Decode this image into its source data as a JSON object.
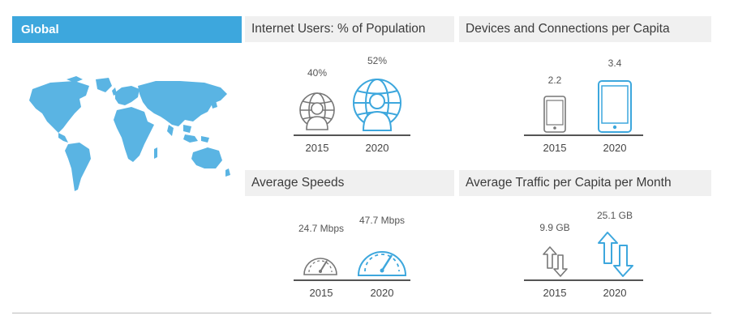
{
  "region": {
    "label": "Global"
  },
  "panels": [
    {
      "title": "Internet Users: % of Population",
      "items": [
        {
          "year": "2015",
          "value": "40%",
          "icon": "globe-user-icon-gray"
        },
        {
          "year": "2020",
          "value": "52%",
          "icon": "globe-user-icon-blue"
        }
      ]
    },
    {
      "title": "Devices and Connections per Capita",
      "items": [
        {
          "year": "2015",
          "value": "2.2",
          "icon": "phone-icon-gray"
        },
        {
          "year": "2020",
          "value": "3.4",
          "icon": "tablet-icon-blue"
        }
      ]
    },
    {
      "title": "Average Speeds",
      "items": [
        {
          "year": "2015",
          "value": "24.7 Mbps",
          "icon": "speedometer-icon-gray"
        },
        {
          "year": "2020",
          "value": "47.7 Mbps",
          "icon": "speedometer-icon-blue"
        }
      ]
    },
    {
      "title": "Average Traffic per Capita per Month",
      "items": [
        {
          "year": "2015",
          "value": "9.9 GB",
          "icon": "traffic-arrows-icon-gray"
        },
        {
          "year": "2020",
          "value": "25.1 GB",
          "icon": "traffic-arrows-icon-blue"
        }
      ]
    }
  ],
  "colors": {
    "accent": "#3da7dd",
    "gray_icon": "#777777",
    "header_bg": "#f0f0f0"
  }
}
